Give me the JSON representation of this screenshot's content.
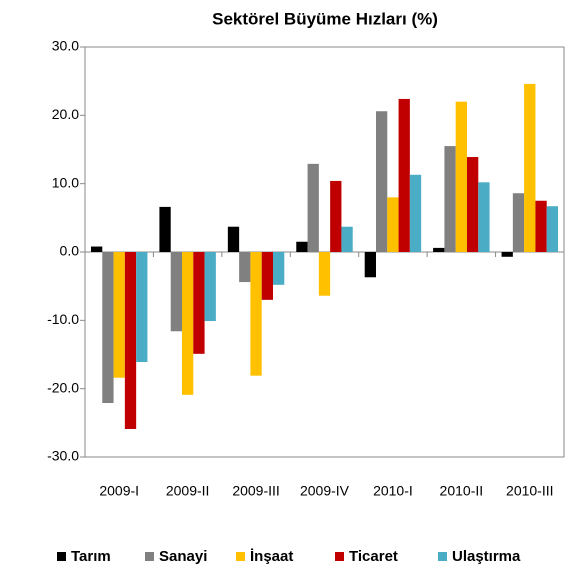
{
  "chart_data": {
    "type": "bar",
    "title": "Sektörel Büyüme Hızları (%)",
    "categories": [
      "2009-I",
      "2009-II",
      "2009-III",
      "2009-IV",
      "2010-I",
      "2010-II",
      "2010-III"
    ],
    "series": [
      {
        "name": "Tarım",
        "color": "#000000",
        "values": [
          0.8,
          6.6,
          3.7,
          1.5,
          -3.7,
          0.6,
          -0.7
        ]
      },
      {
        "name": "Sanayi",
        "color": "#808080",
        "values": [
          -22.1,
          -11.6,
          -4.4,
          12.9,
          20.6,
          15.5,
          8.6
        ]
      },
      {
        "name": "İnşaat",
        "color": "#ffc000",
        "values": [
          -18.4,
          -20.9,
          -18.1,
          -6.4,
          8.0,
          22.0,
          24.6
        ]
      },
      {
        "name": "Ticaret",
        "color": "#c00000",
        "values": [
          -25.9,
          -14.9,
          -7.0,
          10.4,
          22.4,
          13.9,
          7.5
        ]
      },
      {
        "name": "Ulaştırma",
        "color": "#4bacc6",
        "values": [
          -16.1,
          -10.1,
          -4.8,
          3.7,
          11.3,
          10.2,
          6.7
        ]
      }
    ],
    "ylim": [
      -30,
      30
    ],
    "yticks": [
      {
        "value": -30,
        "label": "-30.0"
      },
      {
        "value": -20,
        "label": "-20.0"
      },
      {
        "value": -10,
        "label": "-10.0"
      },
      {
        "value": 0,
        "label": "0.0"
      },
      {
        "value": 10,
        "label": "10.0"
      },
      {
        "value": 20,
        "label": "20.0"
      },
      {
        "value": 30,
        "label": "30.0"
      }
    ],
    "grid": false,
    "legend": "bottom"
  }
}
